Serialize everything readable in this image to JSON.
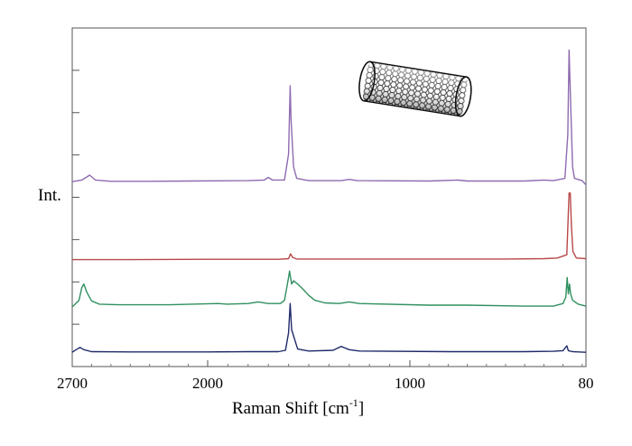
{
  "chart_data": {
    "type": "line",
    "title": "",
    "xlabel": "Raman Shift [cm",
    "xlabel_sup": "-1",
    "xlabel_close": "]",
    "ylabel": "Int.",
    "x_reversed": true,
    "xlim": [
      80,
      2700
    ],
    "x_ticks": [
      2700,
      2000,
      1000,
      80
    ],
    "x_tick_labels": [
      "2700",
      "2000",
      "1000",
      "80"
    ],
    "ylim": [
      0,
      1
    ],
    "grid": false,
    "legend": "none",
    "inset_image": "carbon-nanotube",
    "series": [
      {
        "color": "#8e6bb0",
        "baseline": 0.555,
        "points": [
          [
            2700,
            0.555
          ],
          [
            2650,
            0.56
          ],
          [
            2610,
            0.575
          ],
          [
            2580,
            0.56
          ],
          [
            2500,
            0.556
          ],
          [
            2300,
            0.556
          ],
          [
            2100,
            0.557
          ],
          [
            1800,
            0.558
          ],
          [
            1720,
            0.56
          ],
          [
            1700,
            0.568
          ],
          [
            1680,
            0.56
          ],
          [
            1620,
            0.56
          ],
          [
            1600,
            0.64
          ],
          [
            1592,
            0.85
          ],
          [
            1588,
            0.75
          ],
          [
            1575,
            0.6
          ],
          [
            1560,
            0.565
          ],
          [
            1500,
            0.558
          ],
          [
            1340,
            0.558
          ],
          [
            1300,
            0.562
          ],
          [
            1260,
            0.558
          ],
          [
            900,
            0.557
          ],
          [
            750,
            0.56
          ],
          [
            700,
            0.557
          ],
          [
            400,
            0.557
          ],
          [
            300,
            0.56
          ],
          [
            250,
            0.558
          ],
          [
            190,
            0.565
          ],
          [
            175,
            0.7
          ],
          [
            168,
            0.96
          ],
          [
            160,
            0.8
          ],
          [
            150,
            0.6
          ],
          [
            140,
            0.565
          ],
          [
            100,
            0.558
          ],
          [
            80,
            0.545
          ]
        ]
      },
      {
        "color": "#b84848",
        "baseline": 0.315,
        "points": [
          [
            2700,
            0.315
          ],
          [
            2400,
            0.315
          ],
          [
            2000,
            0.316
          ],
          [
            1650,
            0.316
          ],
          [
            1600,
            0.318
          ],
          [
            1590,
            0.333
          ],
          [
            1580,
            0.322
          ],
          [
            1560,
            0.317
          ],
          [
            1200,
            0.317
          ],
          [
            800,
            0.317
          ],
          [
            500,
            0.317
          ],
          [
            300,
            0.318
          ],
          [
            230,
            0.32
          ],
          [
            180,
            0.33
          ],
          [
            168,
            0.52
          ],
          [
            162,
            0.52
          ],
          [
            156,
            0.42
          ],
          [
            148,
            0.34
          ],
          [
            130,
            0.32
          ],
          [
            80,
            0.318
          ]
        ]
      },
      {
        "color": "#2f8f5f",
        "baseline": 0.17,
        "points": [
          [
            2700,
            0.17
          ],
          [
            2690,
            0.175
          ],
          [
            2665,
            0.19
          ],
          [
            2650,
            0.23
          ],
          [
            2640,
            0.24
          ],
          [
            2625,
            0.215
          ],
          [
            2600,
            0.188
          ],
          [
            2560,
            0.178
          ],
          [
            2450,
            0.176
          ],
          [
            2200,
            0.176
          ],
          [
            1950,
            0.18
          ],
          [
            1900,
            0.178
          ],
          [
            1800,
            0.18
          ],
          [
            1750,
            0.185
          ],
          [
            1700,
            0.18
          ],
          [
            1640,
            0.18
          ],
          [
            1620,
            0.19
          ],
          [
            1600,
            0.26
          ],
          [
            1595,
            0.28
          ],
          [
            1585,
            0.24
          ],
          [
            1575,
            0.25
          ],
          [
            1555,
            0.24
          ],
          [
            1530,
            0.225
          ],
          [
            1500,
            0.205
          ],
          [
            1470,
            0.19
          ],
          [
            1420,
            0.182
          ],
          [
            1350,
            0.18
          ],
          [
            1300,
            0.185
          ],
          [
            1250,
            0.18
          ],
          [
            900,
            0.175
          ],
          [
            700,
            0.175
          ],
          [
            400,
            0.172
          ],
          [
            250,
            0.172
          ],
          [
            200,
            0.18
          ],
          [
            185,
            0.2
          ],
          [
            178,
            0.26
          ],
          [
            172,
            0.21
          ],
          [
            166,
            0.24
          ],
          [
            160,
            0.21
          ],
          [
            150,
            0.19
          ],
          [
            120,
            0.178
          ],
          [
            80,
            0.172
          ]
        ]
      },
      {
        "color": "#1f2a6a",
        "baseline": 0.03,
        "points": [
          [
            2700,
            0.03
          ],
          [
            2680,
            0.038
          ],
          [
            2660,
            0.045
          ],
          [
            2640,
            0.038
          ],
          [
            2600,
            0.032
          ],
          [
            2400,
            0.031
          ],
          [
            2000,
            0.031
          ],
          [
            1800,
            0.032
          ],
          [
            1650,
            0.032
          ],
          [
            1615,
            0.036
          ],
          [
            1600,
            0.09
          ],
          [
            1592,
            0.18
          ],
          [
            1585,
            0.1
          ],
          [
            1570,
            0.07
          ],
          [
            1555,
            0.04
          ],
          [
            1500,
            0.034
          ],
          [
            1380,
            0.036
          ],
          [
            1340,
            0.048
          ],
          [
            1300,
            0.038
          ],
          [
            1250,
            0.034
          ],
          [
            800,
            0.032
          ],
          [
            400,
            0.032
          ],
          [
            250,
            0.033
          ],
          [
            200,
            0.035
          ],
          [
            180,
            0.05
          ],
          [
            172,
            0.035
          ],
          [
            150,
            0.032
          ],
          [
            80,
            0.03
          ]
        ]
      }
    ]
  }
}
